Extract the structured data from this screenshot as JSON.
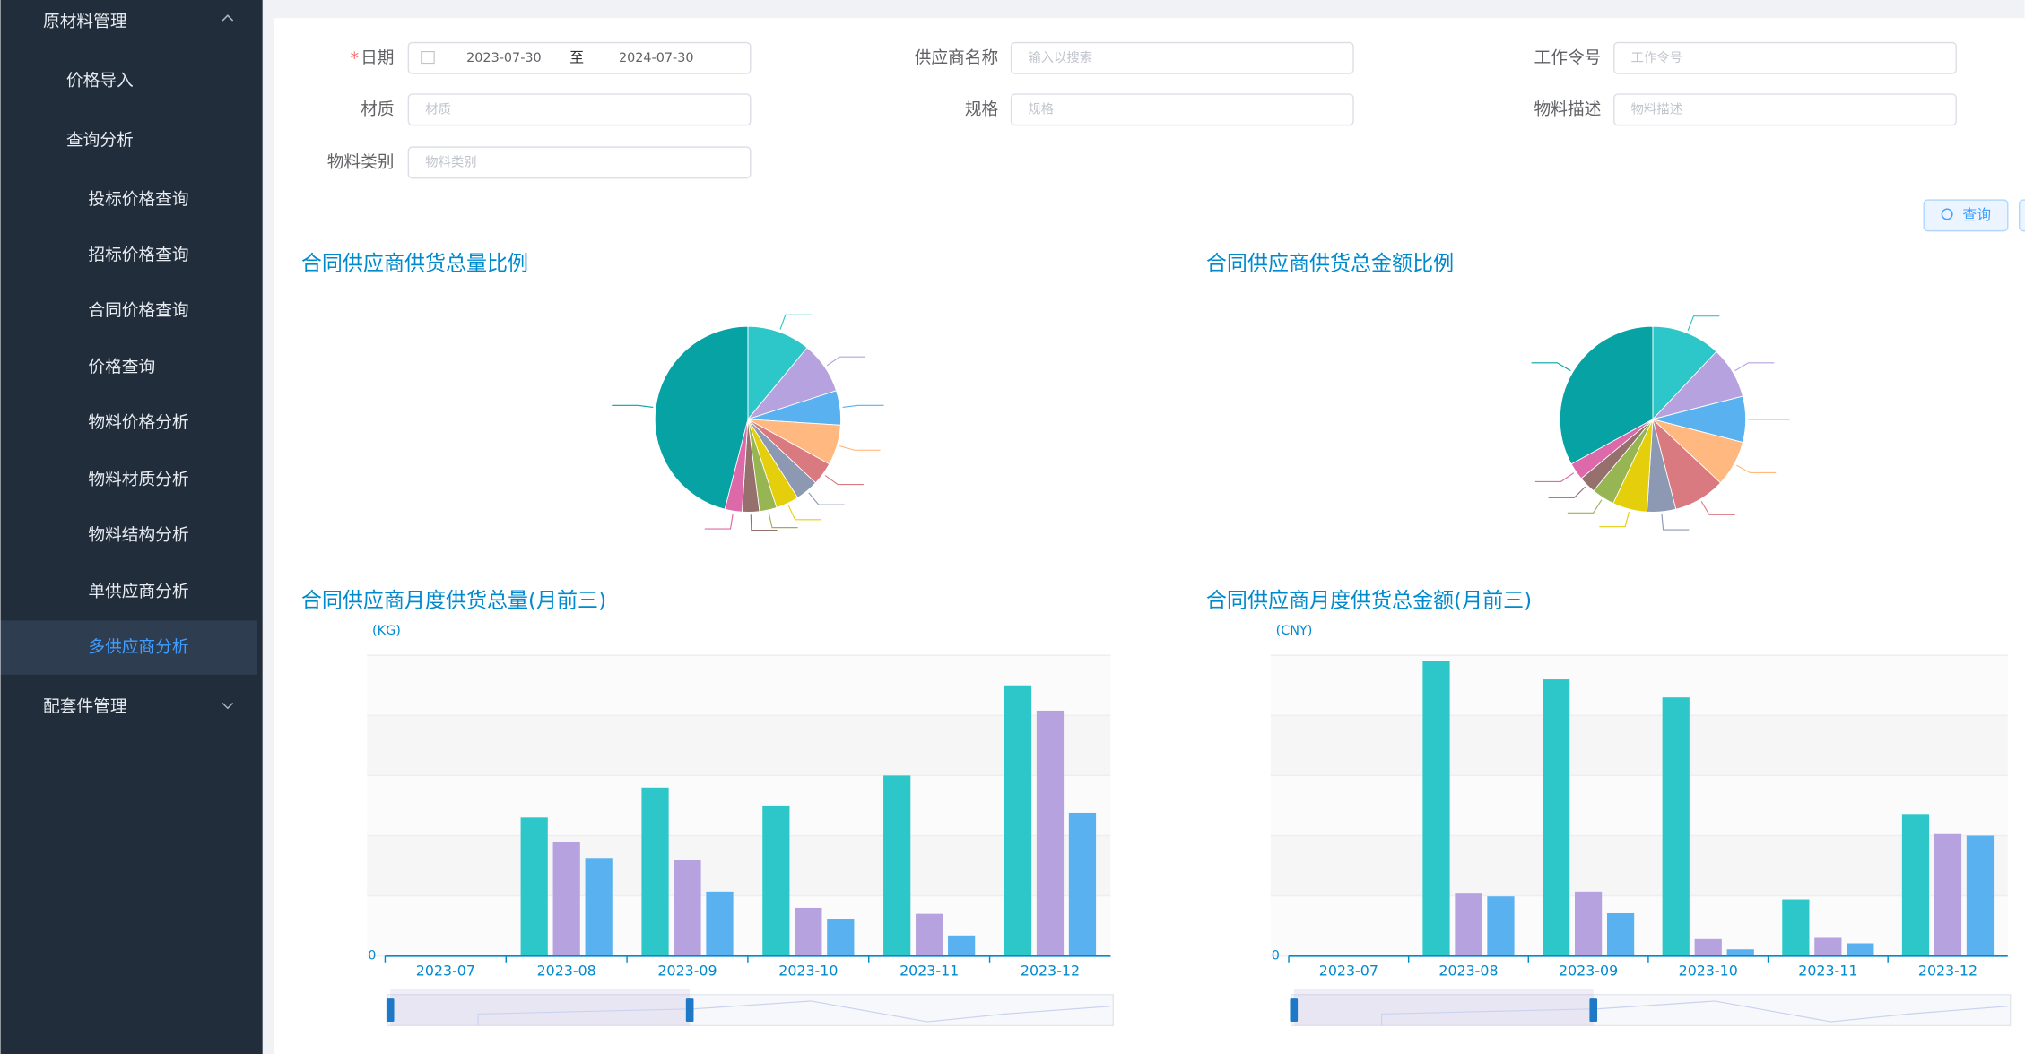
{
  "sidebar": {
    "items": [
      "原材料管理",
      "价格导入",
      "查询分析",
      "投标价格查询",
      "招标价格查询",
      "合同价格查询",
      "价格查询",
      "物料价格分析",
      "物料材质分析",
      "物料结构分析",
      "单供应商分析",
      "多供应商分析",
      "配套件管理"
    ]
  },
  "form": {
    "required_mark": "*",
    "date": {
      "label": "日期",
      "start": "2023-07-30",
      "separator": "至",
      "end": "2024-07-30"
    },
    "fields": [
      {
        "label": "供应商名称",
        "placeholder": "输入以搜索"
      },
      {
        "label": "工作令号",
        "placeholder": "工作令号"
      },
      {
        "label": "材质",
        "placeholder": "材质"
      },
      {
        "label": "规格",
        "placeholder": "规格"
      },
      {
        "label": "物料描述",
        "placeholder": "物料描述"
      },
      {
        "label": "物料类别",
        "placeholder": "物料类别"
      }
    ],
    "button": "查询"
  },
  "chart_data": [
    {
      "type": "pie",
      "title": "合同供应商供货总量比例",
      "values": [
        11,
        9,
        6,
        7,
        4,
        4,
        4,
        3,
        3,
        3,
        46
      ],
      "colors": [
        "#2ec7c9",
        "#b6a2de",
        "#5ab1ef",
        "#ffb980",
        "#d87a80",
        "#8d98b3",
        "#e5cf0d",
        "#97b552",
        "#95706d",
        "#dc69aa",
        "#07a2a4"
      ]
    },
    {
      "type": "pie",
      "title": "合同供应商供货总金额比例",
      "values": [
        12,
        9,
        8,
        8,
        9,
        5,
        6,
        4,
        3,
        3,
        33
      ],
      "colors": [
        "#2ec7c9",
        "#b6a2de",
        "#5ab1ef",
        "#ffb980",
        "#d87a80",
        "#8d98b3",
        "#e5cf0d",
        "#97b552",
        "#95706d",
        "#dc69aa",
        "#07a2a4"
      ]
    },
    {
      "type": "bar",
      "title": "合同供应商月度供货总量(月前三)",
      "y_unit": "(KG)",
      "categories": [
        "2023-07",
        "2023-08",
        "2023-09",
        "2023-10",
        "2023-11",
        "2023-12"
      ],
      "series": [
        {
          "color": "#2ec7c9",
          "values": [
            0,
            2.3,
            2.8,
            2.5,
            3.0,
            4.5
          ]
        },
        {
          "color": "#b6a2de",
          "values": [
            0,
            1.9,
            1.6,
            0.8,
            0.7,
            4.08
          ]
        },
        {
          "color": "#5ab1ef",
          "values": [
            0,
            1.63,
            1.07,
            0.62,
            0.34,
            2.38
          ]
        }
      ],
      "ylim": [
        0,
        5
      ],
      "yticks": [
        0,
        {
          "value": 1,
          "label": null
        },
        {
          "value": 2,
          "label": null
        },
        {
          "value": 3,
          "label": null
        },
        {
          "value": 4,
          "label": null
        },
        {
          "value": 5,
          "label": null
        }
      ],
      "grid": true
    },
    {
      "type": "bar",
      "title": "合同供应商月度供货总金额(月前三)",
      "y_unit": "(CNY)",
      "categories": [
        "2023-07",
        "2023-08",
        "2023-09",
        "2023-10",
        "2023-11",
        "2023-12"
      ],
      "series": [
        {
          "color": "#2ec7c9",
          "values": [
            0,
            4.9,
            4.6,
            4.3,
            0.94,
            2.36
          ]
        },
        {
          "color": "#b6a2de",
          "values": [
            0,
            1.05,
            1.07,
            0.28,
            0.3,
            2.04
          ]
        },
        {
          "color": "#5ab1ef",
          "values": [
            0,
            0.99,
            0.71,
            0.11,
            0.21,
            2.0
          ]
        }
      ],
      "ylim": [
        0,
        5
      ],
      "yticks": [
        0,
        {
          "value": 1,
          "label": null
        },
        {
          "value": 2,
          "label": null
        },
        {
          "value": 3,
          "label": null
        },
        {
          "value": 4,
          "label": null
        },
        {
          "value": 5,
          "label": null
        }
      ],
      "grid": true
    }
  ]
}
